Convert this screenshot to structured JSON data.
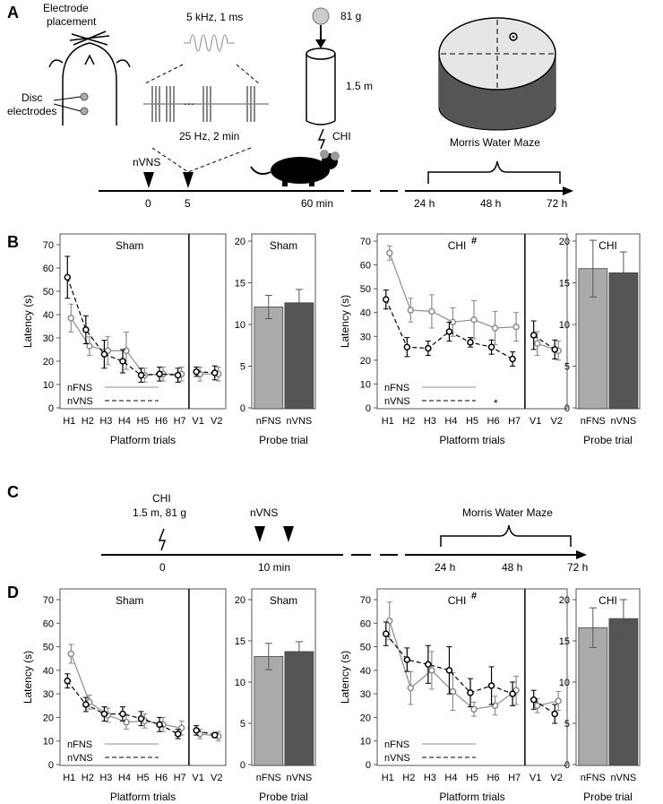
{
  "panels": {
    "A": "A",
    "B": "B",
    "C": "C",
    "D": "D"
  },
  "schematic_a": {
    "electrode_placement": [
      "Electrode",
      "placement"
    ],
    "disc_electrodes": [
      "Disc",
      "electrodes"
    ],
    "pulse_label": "5 kHz, 1 ms",
    "train_label": "25 Hz, 2 min",
    "weight_label": "81 g",
    "height_label": "1.5 m",
    "chi_label": "CHI",
    "nvns_label": "nVNS",
    "mwm_label": "Morris Water Maze",
    "timeline": [
      "0",
      "5",
      "60 min",
      "24 h",
      "48 h",
      "72 h"
    ]
  },
  "schematic_c": {
    "chi_line1": "CHI",
    "chi_line2": "1.5 m, 81 g",
    "nvns_label": "nVNS",
    "mwm_label": "Morris Water Maze",
    "timeline": [
      "0",
      "10 min",
      "24 h",
      "48 h",
      "72 h"
    ]
  },
  "colors": {
    "nFNS_line": "#8c8c8c",
    "nVNS_line": "#000000",
    "nFNS_bar": "#aaaaaa",
    "nVNS_bar": "#555555"
  },
  "legend": {
    "nFNS": "nFNS",
    "nVNS": "nVNS"
  },
  "chart_data": [
    {
      "id": "B-sham-line",
      "type": "line",
      "title": "Sham",
      "xlabel": "Platform trials",
      "ylabel": "Latency (s)",
      "categories": [
        "H1",
        "H2",
        "H3",
        "H4",
        "H5",
        "H6",
        "H7",
        "V1",
        "V2"
      ],
      "ylim": [
        0,
        70
      ],
      "yticks": [
        0,
        10,
        20,
        30,
        40,
        50,
        60,
        70
      ],
      "series": [
        {
          "name": "nFNS",
          "values": [
            38.5,
            26.5,
            24.5,
            24.5,
            14,
            14.5,
            14.5,
            14.5,
            14.5
          ],
          "err": [
            6,
            4,
            6,
            8,
            3,
            3,
            3,
            3,
            3
          ]
        },
        {
          "name": "nVNS",
          "values": [
            56,
            33.5,
            23,
            20,
            14,
            14.5,
            14,
            15.5,
            15
          ],
          "err": [
            9,
            6,
            6,
            5,
            3,
            3,
            3,
            2,
            3
          ]
        }
      ]
    },
    {
      "id": "B-sham-bar",
      "type": "bar",
      "title": "Sham",
      "xlabel": "Probe trial",
      "ylabel": "",
      "categories": [
        "nFNS",
        "nVNS"
      ],
      "ylim": [
        0,
        20
      ],
      "yticks": [
        0,
        5,
        10,
        15,
        20
      ],
      "values": [
        12.1,
        12.6
      ],
      "err": [
        1.4,
        1.6
      ]
    },
    {
      "id": "B-chi-line",
      "type": "line",
      "title": "CHI",
      "mark": "#",
      "xlabel": "Platform trials",
      "ylabel": "Latency (s)",
      "categories": [
        "H1",
        "H2",
        "H3",
        "H4",
        "H5",
        "H6",
        "H7",
        "V1",
        "V2"
      ],
      "ylim": [
        0,
        70
      ],
      "yticks": [
        0,
        10,
        20,
        30,
        40,
        50,
        60,
        70
      ],
      "annotation": "*",
      "series": [
        {
          "name": "nFNS",
          "values": [
            65,
            41,
            40.5,
            36,
            37,
            33.5,
            34,
            27,
            24
          ],
          "err": [
            3,
            5,
            7,
            6,
            8,
            7,
            6,
            5,
            4
          ]
        },
        {
          "name": "nVNS",
          "values": [
            45.5,
            25.5,
            25,
            32,
            27.5,
            25.5,
            20.5,
            30.5,
            24.5
          ],
          "err": [
            4,
            4,
            3,
            4,
            2,
            3,
            3,
            6,
            4
          ]
        }
      ]
    },
    {
      "id": "B-chi-bar",
      "type": "bar",
      "title": "CHI",
      "xlabel": "Probe trial",
      "ylabel": "",
      "categories": [
        "nFNS",
        "nVNS"
      ],
      "ylim": [
        0,
        20
      ],
      "yticks": [
        0,
        5,
        10,
        15,
        20
      ],
      "values": [
        16.7,
        16.2
      ],
      "err": [
        3.4,
        2.5
      ]
    },
    {
      "id": "D-sham-line",
      "type": "line",
      "title": "Sham",
      "xlabel": "Platform trials",
      "ylabel": "Latency (s)",
      "categories": [
        "H1",
        "H2",
        "H3",
        "H4",
        "H5",
        "H6",
        "H7",
        "V1",
        "V2"
      ],
      "ylim": [
        0,
        70
      ],
      "yticks": [
        0,
        10,
        20,
        30,
        40,
        50,
        60,
        70
      ],
      "series": [
        {
          "name": "nFNS",
          "values": [
            47,
            26.5,
            21,
            18,
            18.5,
            17,
            15.5,
            13,
            12
          ],
          "err": [
            4,
            3,
            3,
            3,
            3,
            3,
            3,
            2,
            2
          ]
        },
        {
          "name": "nVNS",
          "values": [
            35.5,
            25.5,
            21.5,
            21.5,
            19.5,
            17,
            13,
            14.5,
            12.5
          ],
          "err": [
            3,
            3,
            3,
            3,
            3,
            3,
            2,
            2,
            1
          ]
        }
      ]
    },
    {
      "id": "D-sham-bar",
      "type": "bar",
      "title": "Sham",
      "xlabel": "Probe trial",
      "ylabel": "",
      "categories": [
        "nFNS",
        "nVNS"
      ],
      "ylim": [
        0,
        20
      ],
      "yticks": [
        0,
        5,
        10,
        15,
        20
      ],
      "values": [
        13.1,
        13.7
      ],
      "err": [
        1.6,
        1.2
      ]
    },
    {
      "id": "D-chi-line",
      "type": "line",
      "title": "CHI",
      "mark": "#",
      "xlabel": "Platform trials",
      "ylabel": "Latency (s)",
      "categories": [
        "H1",
        "H2",
        "H3",
        "H4",
        "H5",
        "H6",
        "H7",
        "V1",
        "V2"
      ],
      "ylim": [
        0,
        70
      ],
      "yticks": [
        0,
        10,
        20,
        30,
        40,
        50,
        60,
        70
      ],
      "series": [
        {
          "name": "nFNS",
          "values": [
            61,
            32.5,
            40,
            31,
            23.5,
            25,
            31.5,
            25,
            27
          ],
          "err": [
            8,
            7,
            8,
            8,
            3,
            4,
            6,
            3,
            4
          ]
        },
        {
          "name": "nVNS",
          "values": [
            55.5,
            44.5,
            42.5,
            40,
            30.5,
            33.5,
            30,
            27.5,
            21.5
          ],
          "err": [
            5,
            5,
            8,
            10,
            6,
            8,
            5,
            4,
            4
          ]
        }
      ]
    },
    {
      "id": "D-chi-bar",
      "type": "bar",
      "title": "CHI",
      "xlabel": "Probe trial",
      "ylabel": "",
      "categories": [
        "nFNS",
        "nVNS"
      ],
      "ylim": [
        0,
        20
      ],
      "yticks": [
        0,
        5,
        10,
        15,
        20
      ],
      "values": [
        16.6,
        17.7
      ],
      "err": [
        2.4,
        2.3
      ]
    }
  ]
}
